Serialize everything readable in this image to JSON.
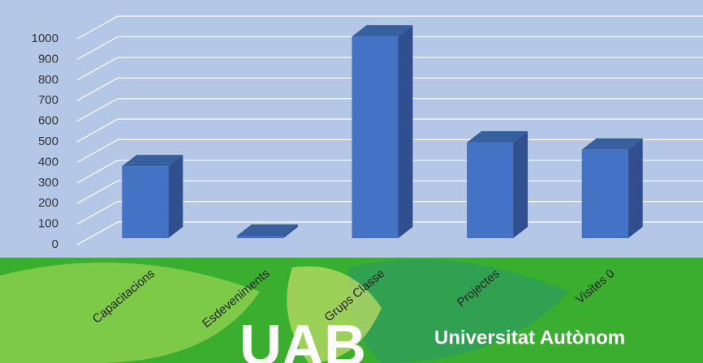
{
  "chart_data": {
    "type": "bar3d",
    "categories": [
      "Capacitacions",
      "Esdeveniments",
      "Grups Classe",
      "Projectes",
      "Visites 0"
    ],
    "values": [
      350,
      12,
      980,
      465,
      430
    ],
    "color": "#4472c4",
    "ylim": [
      0,
      1000
    ],
    "yticks": [
      0,
      100,
      200,
      300,
      400,
      500,
      600,
      700,
      800,
      900,
      1000
    ],
    "grid": true
  },
  "footer": {
    "logo": "UAB",
    "name": "Universitat Autònom"
  }
}
